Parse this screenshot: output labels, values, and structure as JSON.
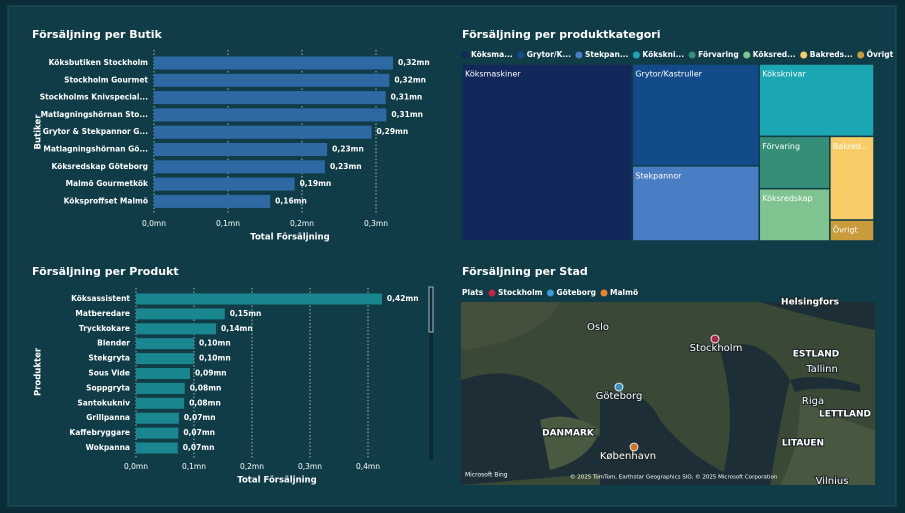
{
  "chart_data": [
    {
      "type": "bar",
      "title": "Försäljning per Butik",
      "x_label": "Total Försäljning",
      "y_label": "Butiker",
      "categories": [
        "Köksbutiken Stockholm",
        "Stockholm Gourmet",
        "Stockholms Knivspecial...",
        "Matlagningshörnan Sto...",
        "Grytor & Stekpannor G...",
        "Matlagningshörnan Gö...",
        "Köksredskap Göteborg",
        "Malmö Gourmetkök",
        "Köksproffset Malmö"
      ],
      "values": [
        0.323,
        0.318,
        0.313,
        0.314,
        0.294,
        0.234,
        0.231,
        0.19,
        0.157
      ],
      "value_labels": [
        "0,32mn",
        "0,32mn",
        "0,31mn",
        "0,31mn",
        "0,29mn",
        "0,23mn",
        "0,23mn",
        "0,19mn",
        "0,16mn"
      ],
      "color": "#2e69a3",
      "xlim": [
        0,
        0.35
      ],
      "xticks": [
        {
          "value": 0,
          "label": "0,0mn"
        },
        {
          "value": 0.1,
          "label": "0,1mn"
        },
        {
          "value": 0.2,
          "label": "0,2mn"
        },
        {
          "value": 0.3,
          "label": "0,3mn"
        }
      ],
      "grid": true
    },
    {
      "type": "bar",
      "title": "Försäljning per Produkt",
      "x_label": "Total Försäljning",
      "y_label": "Produkter",
      "categories": [
        "Köksassistent",
        "Matberedare",
        "Tryckkokare",
        "Blender",
        "Stekgryta",
        "Sous Vide",
        "Soppgryta",
        "Santokukniv",
        "Grillpanna",
        "Kaffebryggare",
        "Wokpanna"
      ],
      "values": [
        0.424,
        0.153,
        0.138,
        0.1,
        0.1,
        0.093,
        0.084,
        0.083,
        0.074,
        0.073,
        0.072
      ],
      "value_labels": [
        "0,42mn",
        "0,15mn",
        "0,14mn",
        "0,10mn",
        "0,10mn",
        "0,09mn",
        "0,08mn",
        "0,08mn",
        "0,07mn",
        "0,07mn",
        "0,07mn"
      ],
      "color": "#1a8690",
      "xlim": [
        0,
        0.5
      ],
      "xticks": [
        {
          "value": 0,
          "label": "0,0mn"
        },
        {
          "value": 0.1,
          "label": "0,1mn"
        },
        {
          "value": 0.2,
          "label": "0,2mn"
        },
        {
          "value": 0.3,
          "label": "0,3mn"
        },
        {
          "value": 0.4,
          "label": "0,4mn"
        }
      ],
      "grid": true
    },
    {
      "type": "treemap",
      "title": "Försäljning per produktkategori",
      "categories": [
        "Köksmaskiner",
        "Grytor/Kastruller",
        "Stekpannor",
        "Köksknivar",
        "Förvaring",
        "Köksredskap",
        "Bakredskap",
        "Övrigt"
      ],
      "legend_labels": [
        "Köksma...",
        "Grytor/K...",
        "Stekpan...",
        "Kökskni...",
        "Förvaring",
        "Köksred...",
        "Bakreds...",
        "Övrigt"
      ],
      "labels": [
        "Köksmaskiner",
        "Grytor/Kastruller",
        "Stekpannor",
        "Köksknivar",
        "Förvaring",
        "Köksredskap",
        "Bakred...",
        "Övrigt"
      ],
      "values": [
        0.98,
        0.42,
        0.31,
        0.27,
        0.12,
        0.12,
        0.12,
        0.03
      ],
      "colors": [
        "#12285a",
        "#124a8a",
        "#4a7ec4",
        "#1ba6b4",
        "#368e79",
        "#7ec390",
        "#f8cd68",
        "#c99b3b"
      ]
    },
    {
      "type": "map",
      "title": "Försäljning per Stad",
      "legend_title": "Plats",
      "series": [
        {
          "name": "Stockholm",
          "color": "#c2244b"
        },
        {
          "name": "Göteborg",
          "color": "#3b9bd8"
        },
        {
          "name": "Malmö",
          "color": "#e8842d"
        }
      ],
      "places": [
        "Helsingfors",
        "Oslo",
        "Stockholm",
        "ESTLAND",
        "Tallinn",
        "Göteborg",
        "Riga",
        "LETTLAND",
        "DANMARK",
        "LITAUEN",
        "København",
        "Vilnius"
      ],
      "logo": "Microsoft Bing",
      "attribution": "© 2025 TomTom, Earthstar Geographics SIO, © 2025 Microsoft Corporation"
    }
  ]
}
